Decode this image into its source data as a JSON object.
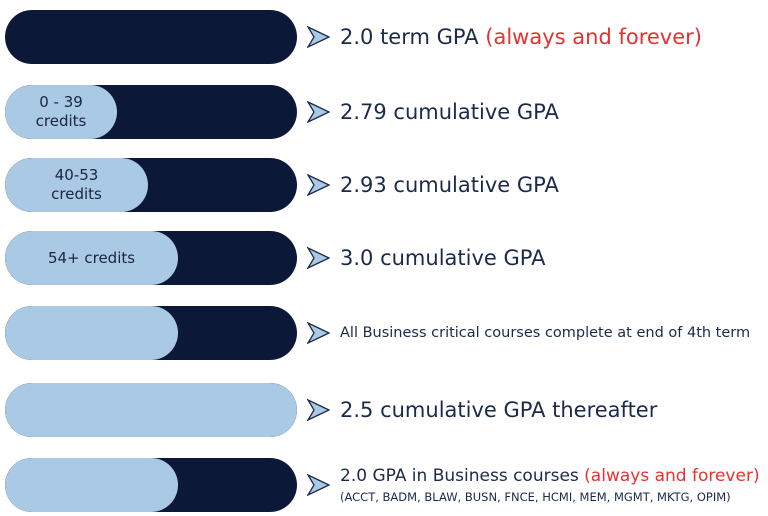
{
  "rows": [
    {
      "text": "2.0 term GPA",
      "highlight": "(always and forever)"
    },
    {
      "label": [
        "0 - 39",
        "credits"
      ],
      "text": "2.79 cumulative GPA"
    },
    {
      "label": [
        "40-53",
        "credits"
      ],
      "text": "2.93 cumulative GPA"
    },
    {
      "label": [
        "54+ credits"
      ],
      "text": "3.0 cumulative GPA"
    },
    {
      "text": "All Business critical courses complete at end of 4th term"
    },
    {
      "text": "2.5 cumulative GPA thereafter"
    },
    {
      "text": "2.0 GPA in Business courses",
      "highlight": "(always and forever)",
      "note": "(ACCT, BADM, BLAW, BUSN, FNCE, HCMI, MEM, MGMT, MKTG, OPIM)"
    }
  ]
}
